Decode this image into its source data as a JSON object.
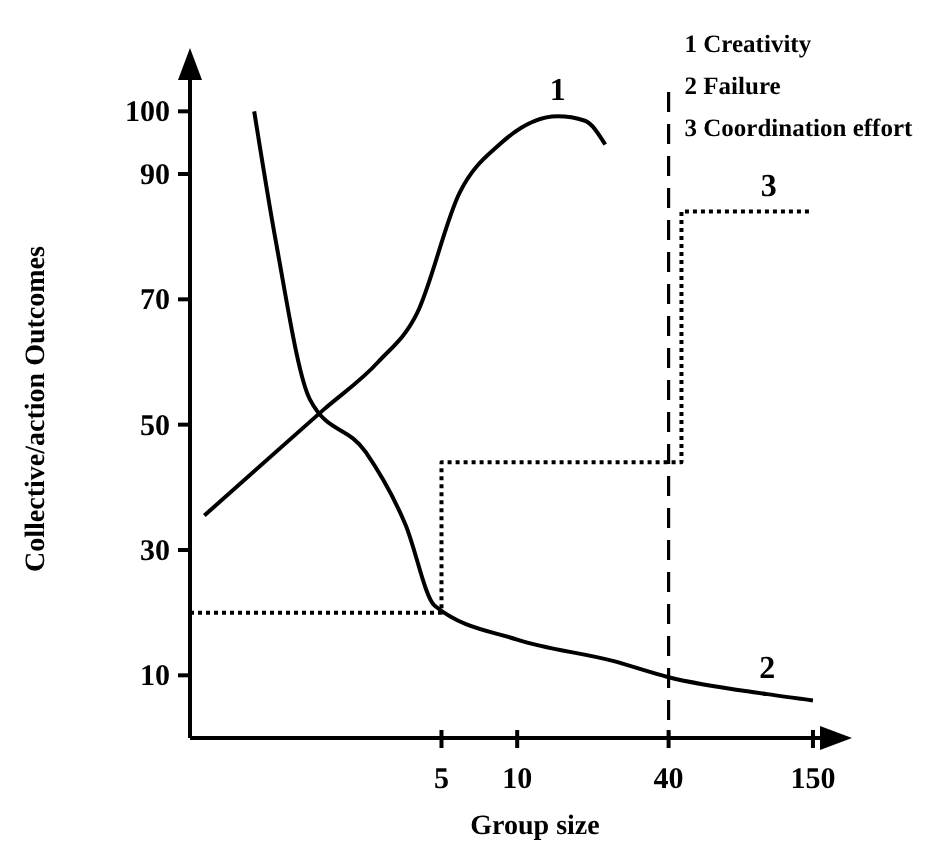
{
  "chart_data": {
    "type": "line",
    "xlabel": "Group size",
    "ylabel": "Collective/action Outcomes",
    "log": "x",
    "xlim": [
      0.5,
      160
    ],
    "xticks": [
      5,
      10,
      40,
      150
    ],
    "ylim": [
      0,
      105
    ],
    "yticks": [
      10,
      30,
      50,
      70,
      90,
      100
    ],
    "grid": false,
    "marker": "none",
    "series": [
      {
        "color": "#000000",
        "line_style": "solid",
        "x": [
          0.57,
          1.7,
          2.8,
          4,
          5.9,
          8.5,
          14.5,
          18.6,
          22.4
        ],
        "values": [
          35.5,
          52.4,
          60,
          67.8,
          87,
          94.7,
          99.2,
          98.5,
          94.7
        ]
      },
      {
        "color": "#000000",
        "line_style": "solid",
        "x": [
          0.9,
          1.1,
          1.5,
          2.5,
          3.6,
          4.7,
          10,
          24,
          40,
          98.6,
          150
        ],
        "values": [
          100,
          79,
          54,
          45.6,
          34,
          21.1,
          15.7,
          12.3,
          9.7,
          7,
          6
        ]
      },
      {
        "type": "step",
        "color": "#000000",
        "line_style": "dotted",
        "x": [
          0.5,
          5,
          45,
          150
        ],
        "values": [
          20,
          44,
          84,
          84
        ]
      }
    ],
    "ref_lines": [
      {
        "axis": "x",
        "value": 40,
        "line_style": "dashed",
        "color": "#000000"
      }
    ],
    "annotations": [
      "1 Creativity",
      "2 Failure",
      "3 Coordination effort",
      {
        "text": "1",
        "x": 14.5,
        "y": 99.2
      },
      {
        "text": "2",
        "x": 98.6,
        "y": 7
      },
      {
        "text": "3",
        "x": 100,
        "y": 84
      }
    ]
  }
}
